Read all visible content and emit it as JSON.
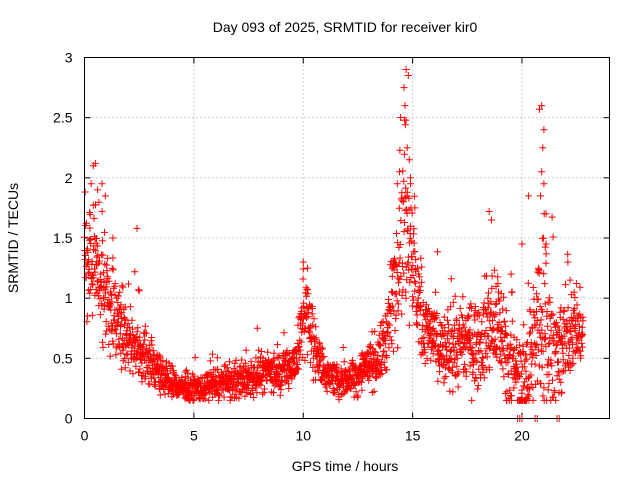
{
  "chart_data": {
    "type": "scatter",
    "title": "Day 093 of 2025, SRMTID for receiver kir0",
    "xlabel": "GPS time / hours",
    "ylabel": "SRMTID / TECUs",
    "xlim": [
      0,
      24
    ],
    "ylim": [
      0,
      3
    ],
    "xticks": [
      0,
      5,
      10,
      15,
      20
    ],
    "yticks": [
      0,
      0.5,
      1,
      1.5,
      2,
      2.5,
      3
    ],
    "xtick_labels": [
      "0",
      "5",
      "10",
      "15",
      "20"
    ],
    "ytick_labels": [
      "0",
      "0.5",
      "1",
      "1.5",
      "2",
      "2.5",
      "3"
    ],
    "grid": true,
    "marker": "plus",
    "series": [
      {
        "name": "SRMTID",
        "color": "#ff0000",
        "profile": {
          "hours": [
            0.0,
            0.25,
            0.5,
            1.0,
            1.5,
            2.0,
            2.5,
            3.0,
            3.5,
            4.0,
            4.5,
            5.0,
            5.5,
            6.0,
            6.5,
            7.0,
            7.5,
            8.0,
            8.5,
            9.0,
            9.5,
            9.8,
            10.0,
            10.3,
            10.6,
            11.0,
            11.5,
            12.0,
            12.5,
            13.0,
            13.5,
            13.9,
            14.2,
            14.5,
            14.7,
            14.9,
            15.2,
            15.5,
            16.0,
            16.5,
            17.0,
            17.5,
            18.0,
            18.5,
            18.8,
            19.2,
            19.6,
            20.0,
            20.4,
            20.8,
            21.0,
            21.3,
            21.6,
            22.0,
            22.3,
            22.6,
            22.8
          ],
          "center": [
            1.4,
            1.35,
            1.3,
            1.0,
            0.8,
            0.6,
            0.55,
            0.5,
            0.35,
            0.3,
            0.25,
            0.25,
            0.25,
            0.28,
            0.3,
            0.3,
            0.32,
            0.35,
            0.38,
            0.4,
            0.45,
            0.55,
            0.9,
            0.8,
            0.55,
            0.38,
            0.32,
            0.32,
            0.38,
            0.45,
            0.5,
            0.75,
            1.2,
            1.6,
            1.7,
            1.55,
            1.0,
            0.8,
            0.65,
            0.55,
            0.6,
            0.62,
            0.6,
            0.75,
            0.8,
            0.55,
            0.4,
            0.3,
            0.5,
            0.75,
            0.9,
            0.6,
            0.45,
            0.65,
            0.75,
            0.7,
            0.75
          ],
          "spread": [
            0.35,
            0.45,
            0.4,
            0.35,
            0.3,
            0.22,
            0.2,
            0.18,
            0.12,
            0.1,
            0.1,
            0.1,
            0.1,
            0.12,
            0.12,
            0.12,
            0.12,
            0.14,
            0.14,
            0.14,
            0.15,
            0.2,
            0.3,
            0.25,
            0.2,
            0.12,
            0.12,
            0.12,
            0.15,
            0.18,
            0.2,
            0.3,
            0.45,
            0.6,
            0.7,
            0.55,
            0.35,
            0.3,
            0.25,
            0.25,
            0.3,
            0.3,
            0.32,
            0.45,
            0.5,
            0.35,
            0.3,
            0.3,
            0.4,
            0.6,
            0.7,
            0.45,
            0.35,
            0.35,
            0.3,
            0.25,
            0.2
          ],
          "sample_interval_hours": 0.01
        },
        "highlights": [
          {
            "x": 0.3,
            "y": 1.95
          },
          {
            "x": 0.4,
            "y": 2.1
          },
          {
            "x": 0.5,
            "y": 2.12
          },
          {
            "x": 0.6,
            "y": 1.9
          },
          {
            "x": 0.8,
            "y": 1.95
          },
          {
            "x": 0.95,
            "y": 1.85
          },
          {
            "x": 2.4,
            "y": 1.58
          },
          {
            "x": 2.3,
            "y": 1.22
          },
          {
            "x": 1.3,
            "y": 1.5
          },
          {
            "x": 7.9,
            "y": 0.75
          },
          {
            "x": 10.0,
            "y": 1.3
          },
          {
            "x": 10.2,
            "y": 1.25
          },
          {
            "x": 14.7,
            "y": 2.9
          },
          {
            "x": 14.8,
            "y": 2.85
          },
          {
            "x": 14.6,
            "y": 2.75
          },
          {
            "x": 14.65,
            "y": 2.6
          },
          {
            "x": 14.7,
            "y": 2.48
          },
          {
            "x": 14.75,
            "y": 2.25
          },
          {
            "x": 14.85,
            "y": 2.15
          },
          {
            "x": 14.9,
            "y": 2.0
          },
          {
            "x": 14.3,
            "y": 1.95
          },
          {
            "x": 14.4,
            "y": 2.05
          },
          {
            "x": 15.1,
            "y": 1.75
          },
          {
            "x": 18.5,
            "y": 1.72
          },
          {
            "x": 18.6,
            "y": 1.65
          },
          {
            "x": 19.5,
            "y": 1.2
          },
          {
            "x": 20.0,
            "y": 1.45
          },
          {
            "x": 20.3,
            "y": 1.85
          },
          {
            "x": 20.8,
            "y": 2.57
          },
          {
            "x": 20.9,
            "y": 2.6
          },
          {
            "x": 21.0,
            "y": 2.4
          },
          {
            "x": 20.95,
            "y": 2.25
          },
          {
            "x": 20.9,
            "y": 2.05
          },
          {
            "x": 21.0,
            "y": 1.95
          },
          {
            "x": 21.1,
            "y": 1.7
          },
          {
            "x": 20.85,
            "y": 1.85
          },
          {
            "x": 21.1,
            "y": 1.45
          },
          {
            "x": 22.1,
            "y": 1.3
          },
          {
            "x": 22.2,
            "y": 1.15
          },
          {
            "x": 19.8,
            "y": 0.0
          },
          {
            "x": 19.9,
            "y": 0.0
          },
          {
            "x": 20.0,
            "y": 0.0
          },
          {
            "x": 20.6,
            "y": 0.0
          },
          {
            "x": 20.7,
            "y": 0.0
          },
          {
            "x": 21.6,
            "y": 0.0
          },
          {
            "x": 21.7,
            "y": 0.0
          }
        ]
      }
    ]
  }
}
